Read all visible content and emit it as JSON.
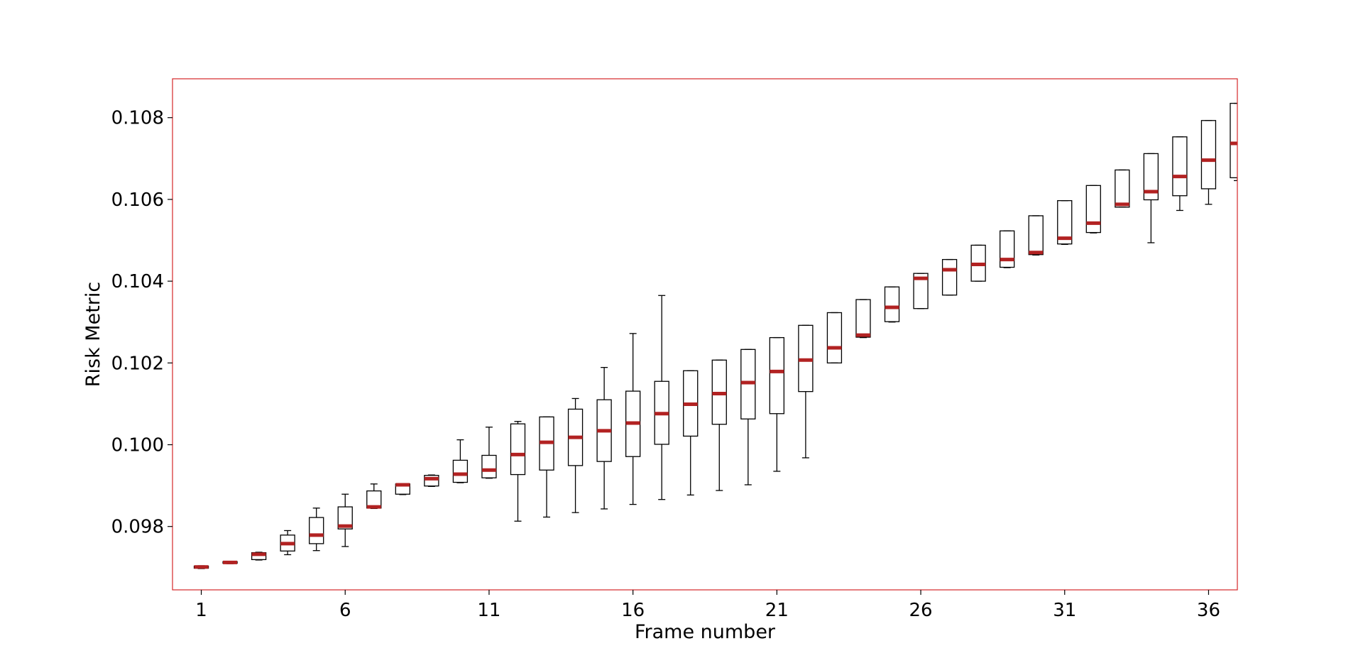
{
  "chart_data": {
    "type": "boxplot",
    "title": "",
    "xlabel": "Frame number",
    "ylabel": "Risk Metric",
    "xlim": [
      0.0,
      37.0
    ],
    "ylim": [
      0.09645,
      0.10895
    ],
    "xticks": [
      1,
      6,
      11,
      16,
      21,
      26,
      31,
      36
    ],
    "xtick_labels": [
      "1",
      "6",
      "11",
      "16",
      "21",
      "26",
      "31",
      "36"
    ],
    "yticks": [
      0.098,
      0.1,
      0.102,
      0.104,
      0.106,
      0.108
    ],
    "ytick_labels": [
      "0.098",
      "0.100",
      "0.102",
      "0.104",
      "0.106",
      "0.108"
    ],
    "grid": false,
    "frame_color": "#d62728",
    "box_color": "#000000",
    "median_color": "#b22222",
    "boxes": [
      {
        "x": 1,
        "whislo": 0.09697,
        "q1": 0.09698,
        "med": 0.09701,
        "q3": 0.09703,
        "whishi": 0.09704
      },
      {
        "x": 2,
        "whislo": 0.09709,
        "q1": 0.0971,
        "med": 0.09712,
        "q3": 0.09714,
        "whishi": 0.09715
      },
      {
        "x": 3,
        "whislo": 0.09718,
        "q1": 0.09719,
        "med": 0.09732,
        "q3": 0.09736,
        "whishi": 0.09737
      },
      {
        "x": 4,
        "whislo": 0.09731,
        "q1": 0.0974,
        "med": 0.09758,
        "q3": 0.09779,
        "whishi": 0.0979
      },
      {
        "x": 5,
        "whislo": 0.09741,
        "q1": 0.09758,
        "med": 0.09779,
        "q3": 0.09822,
        "whishi": 0.09845
      },
      {
        "x": 6,
        "whislo": 0.09751,
        "q1": 0.09794,
        "med": 0.09801,
        "q3": 0.09848,
        "whishi": 0.09879
      },
      {
        "x": 7,
        "whislo": 0.09844,
        "q1": 0.09845,
        "med": 0.09848,
        "q3": 0.09887,
        "whishi": 0.09904
      },
      {
        "x": 8,
        "whislo": 0.09878,
        "q1": 0.09879,
        "med": 0.09902,
        "q3": 0.09904,
        "whishi": 0.09905
      },
      {
        "x": 9,
        "whislo": 0.09898,
        "q1": 0.09899,
        "med": 0.09917,
        "q3": 0.09925,
        "whishi": 0.09926
      },
      {
        "x": 10,
        "whislo": 0.09907,
        "q1": 0.09908,
        "med": 0.09928,
        "q3": 0.09962,
        "whishi": 0.10012
      },
      {
        "x": 11,
        "whislo": 0.09918,
        "q1": 0.09919,
        "med": 0.09938,
        "q3": 0.09974,
        "whishi": 0.10043
      },
      {
        "x": 12,
        "whislo": 0.09813,
        "q1": 0.09927,
        "med": 0.09976,
        "q3": 0.10051,
        "whishi": 0.10057
      },
      {
        "x": 13,
        "whislo": 0.09823,
        "q1": 0.09938,
        "med": 0.10006,
        "q3": 0.10068,
        "whishi": 0.10068
      },
      {
        "x": 14,
        "whislo": 0.09834,
        "q1": 0.09949,
        "med": 0.10018,
        "q3": 0.10087,
        "whishi": 0.10113
      },
      {
        "x": 15,
        "whislo": 0.09843,
        "q1": 0.09959,
        "med": 0.10034,
        "q3": 0.1011,
        "whishi": 0.10189
      },
      {
        "x": 16,
        "whislo": 0.09854,
        "q1": 0.09971,
        "med": 0.10053,
        "q3": 0.10131,
        "whishi": 0.10272
      },
      {
        "x": 17,
        "whislo": 0.09866,
        "q1": 0.10001,
        "med": 0.10076,
        "q3": 0.10155,
        "whishi": 0.10365
      },
      {
        "x": 18,
        "whislo": 0.09877,
        "q1": 0.10021,
        "med": 0.10099,
        "q3": 0.10181,
        "whishi": 0.10181
      },
      {
        "x": 19,
        "whislo": 0.09888,
        "q1": 0.1005,
        "med": 0.10125,
        "q3": 0.10207,
        "whishi": 0.10207
      },
      {
        "x": 20,
        "whislo": 0.09902,
        "q1": 0.10063,
        "med": 0.10152,
        "q3": 0.10233,
        "whishi": 0.10233
      },
      {
        "x": 21,
        "whislo": 0.09935,
        "q1": 0.10076,
        "med": 0.10179,
        "q3": 0.10262,
        "whishi": 0.10262
      },
      {
        "x": 22,
        "whislo": 0.09968,
        "q1": 0.1013,
        "med": 0.10207,
        "q3": 0.10292,
        "whishi": 0.10292
      },
      {
        "x": 23,
        "whislo": 0.102,
        "q1": 0.102,
        "med": 0.10237,
        "q3": 0.10323,
        "whishi": 0.10323
      },
      {
        "x": 24,
        "whislo": 0.10262,
        "q1": 0.10263,
        "med": 0.10268,
        "q3": 0.10355,
        "whishi": 0.10355
      },
      {
        "x": 25,
        "whislo": 0.103,
        "q1": 0.10301,
        "med": 0.10336,
        "q3": 0.10386,
        "whishi": 0.10386
      },
      {
        "x": 26,
        "whislo": 0.10333,
        "q1": 0.10333,
        "med": 0.10407,
        "q3": 0.10419,
        "whishi": 0.10419
      },
      {
        "x": 27,
        "whislo": 0.10366,
        "q1": 0.10366,
        "med": 0.10428,
        "q3": 0.10453,
        "whishi": 0.10453
      },
      {
        "x": 28,
        "whislo": 0.104,
        "q1": 0.104,
        "med": 0.10441,
        "q3": 0.10488,
        "whishi": 0.10488
      },
      {
        "x": 29,
        "whislo": 0.10433,
        "q1": 0.10434,
        "med": 0.10453,
        "q3": 0.10523,
        "whishi": 0.10523
      },
      {
        "x": 30,
        "whislo": 0.10464,
        "q1": 0.10465,
        "med": 0.1047,
        "q3": 0.1056,
        "whishi": 0.1056
      },
      {
        "x": 31,
        "whislo": 0.1049,
        "q1": 0.10491,
        "med": 0.10505,
        "q3": 0.10597,
        "whishi": 0.10597
      },
      {
        "x": 32,
        "whislo": 0.10518,
        "q1": 0.10519,
        "med": 0.10542,
        "q3": 0.10634,
        "whishi": 0.10634
      },
      {
        "x": 33,
        "whislo": 0.10581,
        "q1": 0.10581,
        "med": 0.10588,
        "q3": 0.10672,
        "whishi": 0.10672
      },
      {
        "x": 34,
        "whislo": 0.10494,
        "q1": 0.10599,
        "med": 0.10619,
        "q3": 0.10712,
        "whishi": 0.10712
      },
      {
        "x": 35,
        "whislo": 0.10573,
        "q1": 0.10609,
        "med": 0.10656,
        "q3": 0.10753,
        "whishi": 0.10753
      },
      {
        "x": 36,
        "whislo": 0.10588,
        "q1": 0.10626,
        "med": 0.10696,
        "q3": 0.10793,
        "whishi": 0.10793
      },
      {
        "x": 37,
        "whislo": 0.10646,
        "q1": 0.10653,
        "med": 0.10737,
        "q3": 0.10835,
        "whishi": 0.10835
      }
    ]
  }
}
